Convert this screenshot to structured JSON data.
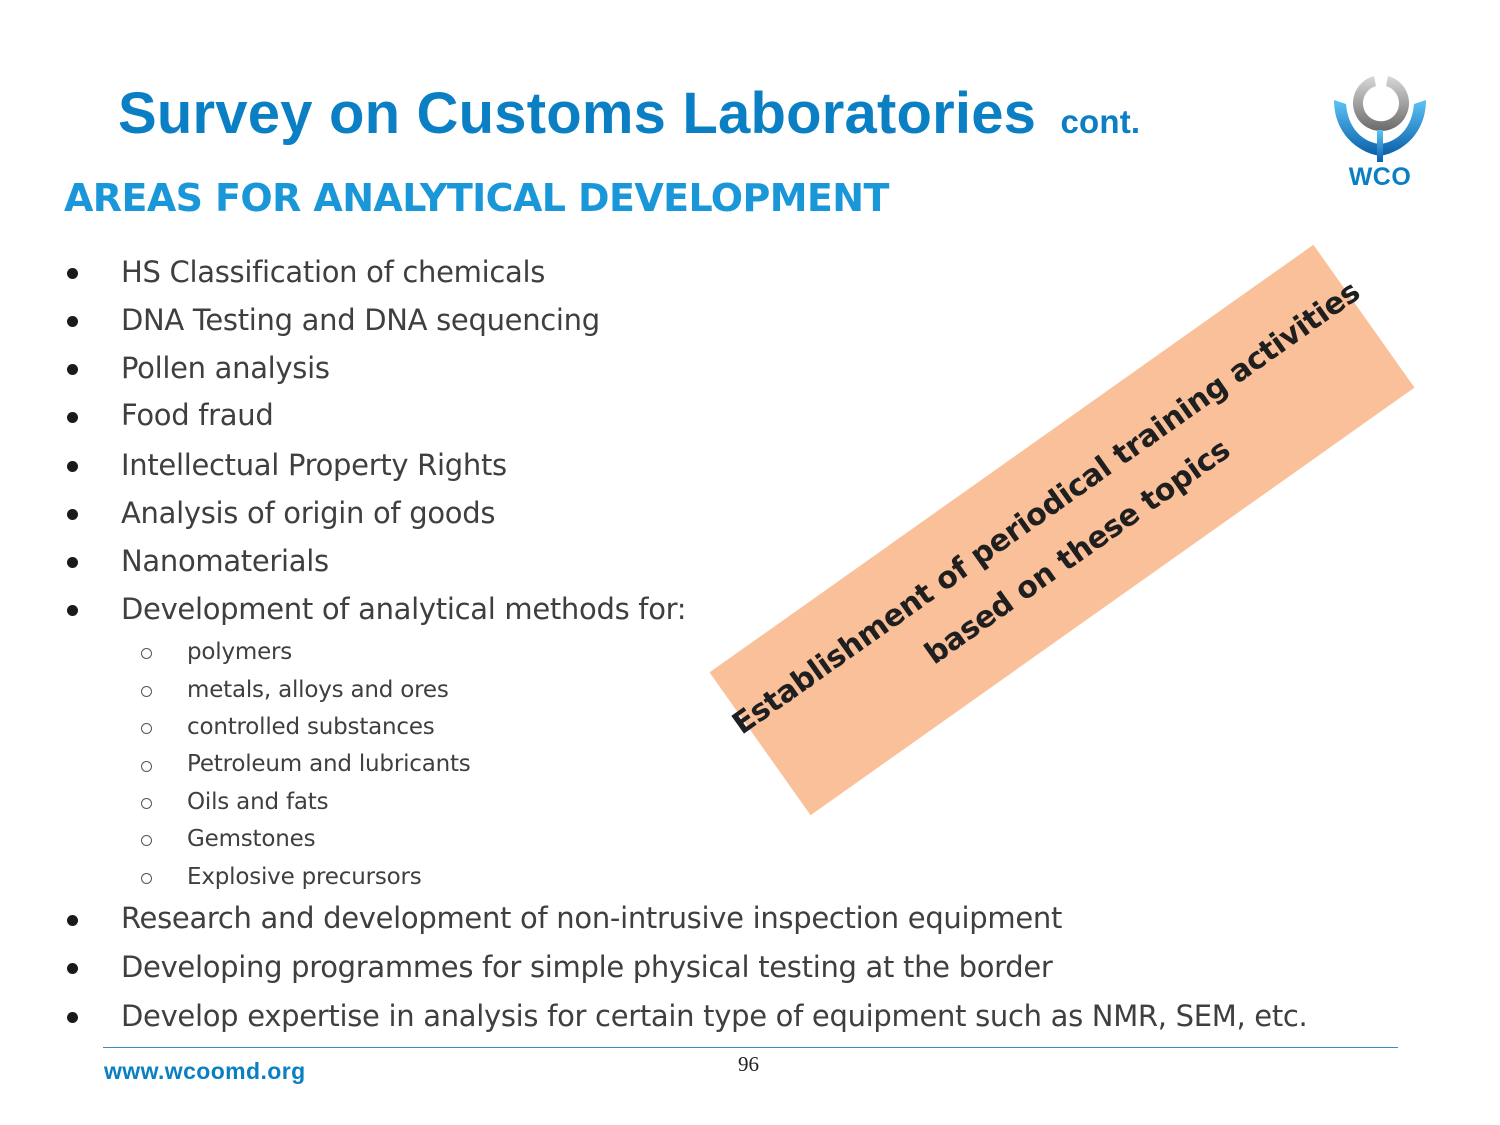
{
  "title": "Survey on Customs Laboratories",
  "title_suffix": "cont.",
  "subtitle": "AREAS FOR ANALYTICAL DEVELOPMENT",
  "logo": {
    "text": "WCO",
    "color": "#0b7fc3"
  },
  "bullets_top": [
    "HS Classification of chemicals",
    "DNA Testing and DNA sequencing",
    "Pollen analysis",
    "Food fraud",
    "Intellectual Property Rights",
    "Analysis of origin of goods",
    "Nanomaterials",
    "Development of analytical methods for:"
  ],
  "sub_bullets": [
    "polymers",
    "metals, alloys and ores",
    "controlled substances",
    "Petroleum and lubricants",
    "Oils and fats",
    "Gemstones",
    "Explosive precursors"
  ],
  "bullets_bottom": [
    "Research and development of non-intrusive inspection equipment",
    "Developing programmes for simple physical testing at the border",
    "Develop expertise in analysis for certain type of equipment such as NMR, SEM, etc."
  ],
  "banner": {
    "line1": "Establishment of periodical training activities",
    "line2": "based on these topics",
    "color": "#f9c09a"
  },
  "footer": {
    "url": "www.wcoomd.org",
    "page_number": "96"
  }
}
